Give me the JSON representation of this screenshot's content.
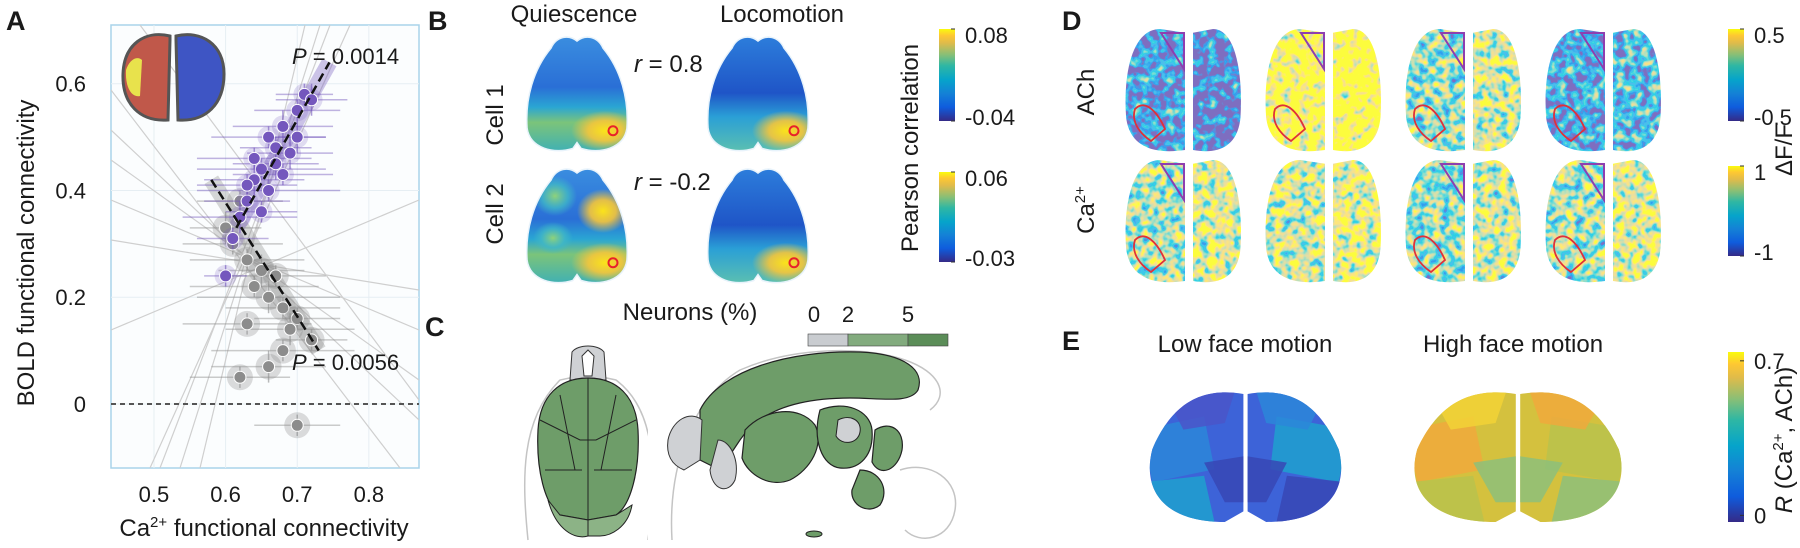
{
  "A": {
    "letter": "A",
    "chart_data": {
      "type": "scatter",
      "ylabel": "BOLD functional connectivity",
      "xlabel": {
        "base": "Ca",
        "sup": "2+",
        "rest": " functional connectivity"
      },
      "xlim": [
        0.44,
        0.87
      ],
      "ylim": [
        -0.12,
        0.71
      ],
      "xticks": [
        0.5,
        0.6,
        0.7,
        0.8
      ],
      "yticks": [
        0,
        0.2,
        0.4,
        0.6
      ],
      "reference_y": 0,
      "series": [
        {
          "color": "#7457bd",
          "x": [
            0.71,
            0.72,
            0.7,
            0.68,
            0.66,
            0.67,
            0.69,
            0.65,
            0.64,
            0.66,
            0.63,
            0.62,
            0.65,
            0.68,
            0.7,
            0.6,
            0.61,
            0.67,
            0.64,
            0.63
          ],
          "y": [
            0.58,
            0.57,
            0.55,
            0.52,
            0.5,
            0.48,
            0.47,
            0.44,
            0.42,
            0.4,
            0.38,
            0.35,
            0.36,
            0.43,
            0.5,
            0.24,
            0.31,
            0.45,
            0.46,
            0.41
          ],
          "xerr": [
            0.04,
            0.05,
            0.06,
            0.07,
            0.08,
            0.05,
            0.06,
            0.09,
            0.07,
            0.1,
            0.06,
            0.08,
            0.05,
            0.07,
            0.04,
            0.03,
            0.05,
            0.06,
            0.08,
            0.07
          ],
          "yerr": [
            0.02,
            0.03,
            0.02,
            0.03,
            0.02,
            0.02,
            0.03,
            0.02,
            0.03,
            0.02,
            0.02,
            0.03,
            0.02,
            0.02,
            0.03,
            0.02,
            0.02,
            0.03,
            0.02,
            0.02
          ]
        },
        {
          "color": "#8c8c8c",
          "x": [
            0.62,
            0.6,
            0.61,
            0.63,
            0.65,
            0.64,
            0.67,
            0.66,
            0.68,
            0.7,
            0.69,
            0.72,
            0.68,
            0.62,
            0.66,
            0.7,
            0.63
          ],
          "y": [
            0.38,
            0.33,
            0.3,
            0.27,
            0.25,
            0.22,
            0.24,
            0.2,
            0.18,
            0.16,
            0.14,
            0.12,
            0.1,
            0.05,
            0.07,
            -0.04,
            0.15
          ],
          "xerr": [
            0.06,
            0.05,
            0.07,
            0.08,
            0.06,
            0.09,
            0.07,
            0.1,
            0.08,
            0.06,
            0.09,
            0.05,
            0.1,
            0.07,
            0.08,
            0.06,
            0.09
          ],
          "yerr": [
            0.02,
            0.03,
            0.02,
            0.02,
            0.03,
            0.02,
            0.02,
            0.03,
            0.02,
            0.02,
            0.03,
            0.02,
            0.02,
            0.02,
            0.03,
            0.02,
            0.02
          ]
        }
      ],
      "fits": [
        {
          "x": [
            0.615,
            0.745
          ],
          "y": [
            0.33,
            0.64
          ]
        },
        {
          "x": [
            0.58,
            0.73
          ],
          "y": [
            0.42,
            0.1
          ]
        }
      ],
      "annotations": [
        {
          "italic": "P",
          "text": " = 0.0014"
        },
        {
          "italic": "P",
          "text": " = 0.0056"
        }
      ]
    }
  },
  "B": {
    "letter": "B",
    "columns": [
      "Quiescence",
      "Locomotion"
    ],
    "rows": [
      "Cell 1",
      "Cell 2"
    ],
    "r_labels": [
      {
        "italic": "r",
        "text": " = 0.8"
      },
      {
        "italic": "r",
        "text": " = -0.2"
      }
    ],
    "colorbar_label": "Pearson correlation",
    "colorbars": [
      {
        "ticks": [
          0.08,
          -0.04
        ]
      },
      {
        "ticks": [
          0.06,
          -0.03
        ]
      }
    ]
  },
  "C": {
    "letter": "C",
    "colorbar_label": "Neurons (%)",
    "colorbar": {
      "clim": [
        0,
        7
      ],
      "ticks": [
        0,
        2,
        5
      ],
      "colors": [
        "#c9ccd0",
        "#82ab7e",
        "#5b8d58"
      ]
    }
  },
  "D": {
    "letter": "D",
    "rows": [
      {
        "text": "ACh"
      },
      {
        "base": "Ca",
        "sup": "2+"
      }
    ],
    "colorbar_label": "ΔF/F",
    "colorbars": [
      {
        "ticks": [
          0.5,
          -0.5
        ]
      },
      {
        "ticks": [
          1,
          -1
        ]
      }
    ]
  },
  "E": {
    "letter": "E",
    "columns": [
      "Low face motion",
      "High face motion"
    ],
    "colorbar_label": {
      "italic": "R",
      "rest": " (Ca",
      "sup": "2+",
      "end": ", ACh)"
    },
    "colorbar": {
      "clim": [
        -0.03,
        0.74
      ],
      "ticks": [
        0.7,
        0
      ]
    }
  }
}
